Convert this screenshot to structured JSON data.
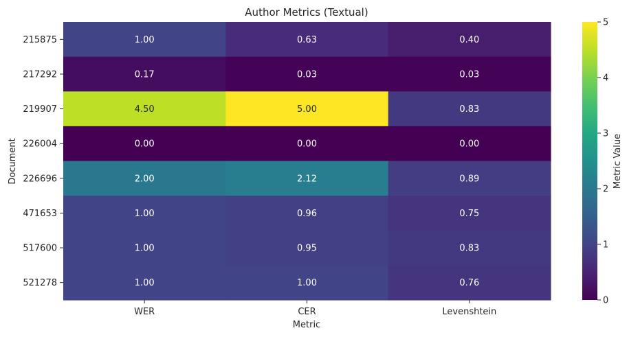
{
  "chart_data": {
    "type": "heatmap",
    "title": "Author Metrics (Textual)",
    "xlabel": "Metric",
    "ylabel": "Document",
    "colorbar_label": "Metric Value",
    "colormap": "viridis",
    "vmin": 0,
    "vmax": 5,
    "colorbar_ticks": [
      "0",
      "1",
      "2",
      "3",
      "4",
      "5"
    ],
    "columns": [
      "WER",
      "CER",
      "Levenshtein"
    ],
    "rows": [
      "215875",
      "217292",
      "219907",
      "226004",
      "226696",
      "471653",
      "517600",
      "521278"
    ],
    "values": [
      [
        1.0,
        0.63,
        0.4
      ],
      [
        0.17,
        0.03,
        0.03
      ],
      [
        4.5,
        5.0,
        0.83
      ],
      [
        0.0,
        0.0,
        0.0
      ],
      [
        2.0,
        2.12,
        0.89
      ],
      [
        1.0,
        0.96,
        0.75
      ],
      [
        1.0,
        0.95,
        0.83
      ],
      [
        1.0,
        1.0,
        0.76
      ]
    ],
    "cell_labels": [
      [
        "1.00",
        "0.63",
        "0.40"
      ],
      [
        "0.17",
        "0.03",
        "0.03"
      ],
      [
        "4.50",
        "5.00",
        "0.83"
      ],
      [
        "0.00",
        "0.00",
        "0.00"
      ],
      [
        "2.00",
        "2.12",
        "0.89"
      ],
      [
        "1.00",
        "0.96",
        "0.75"
      ],
      [
        "1.00",
        "0.95",
        "0.83"
      ],
      [
        "1.00",
        "1.00",
        "0.76"
      ]
    ],
    "grid": false,
    "colorbar_position": "right"
  }
}
